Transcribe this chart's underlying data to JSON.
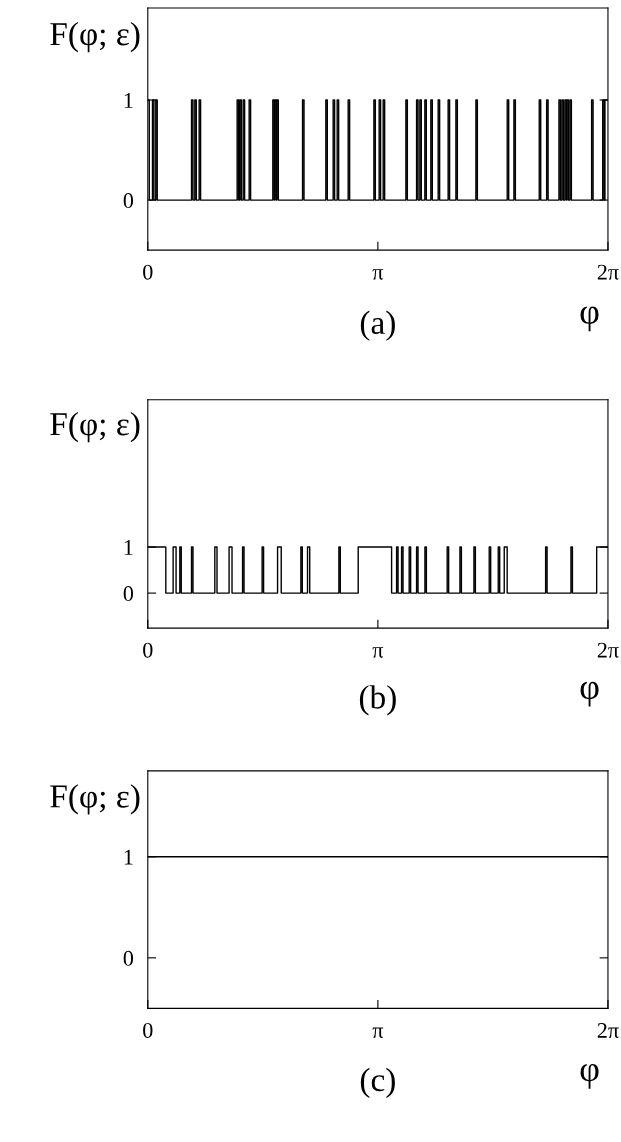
{
  "chart_data": [
    {
      "type": "step",
      "ylabel": "F(φ; ε)",
      "xlabel": "φ",
      "annotations": [
        "(a)"
      ],
      "xlim": [
        0,
        6.2832
      ],
      "ylim": [
        -0.5,
        1.92
      ],
      "xticks": [
        {
          "value": 0,
          "label": "0"
        },
        {
          "value": 3.1416,
          "label": "π"
        },
        {
          "value": 6.2832,
          "label": "2π"
        }
      ],
      "yticks": [
        0,
        1
      ],
      "grid": false,
      "legend": false,
      "series": [
        {
          "color": "#000000",
          "x": [
            0,
            0.02,
            0.064,
            0.084,
            0.109,
            0.129,
            0.597,
            0.617,
            0.642,
            0.662,
            0.701,
            0.721,
            1.22,
            1.24,
            1.257,
            1.277,
            1.302,
            1.322,
            1.384,
            1.404,
            1.707,
            1.727,
            1.735,
            1.755,
            1.762,
            1.782,
            2.113,
            2.133,
            2.431,
            2.451,
            2.531,
            2.551,
            2.586,
            2.606,
            2.736,
            2.756,
            3.087,
            3.107,
            3.159,
            3.179,
            3.214,
            3.234,
            3.524,
            3.544,
            3.67,
            3.69,
            3.715,
            3.735,
            3.783,
            3.803,
            3.865,
            3.885,
            3.965,
            3.985,
            4.101,
            4.121,
            4.207,
            4.227,
            4.48,
            4.5,
            4.908,
            4.928,
            4.999,
            5.019,
            5.345,
            5.365,
            5.446,
            5.466,
            5.614,
            5.634,
            5.655,
            5.675,
            5.696,
            5.716,
            5.723,
            5.743,
            5.764,
            5.784,
            6.06,
            6.08,
            6.211,
            6.231,
            6.242,
            6.283
          ],
          "values": [
            1,
            0,
            1,
            0,
            1,
            0,
            1,
            0,
            1,
            0,
            1,
            0,
            1,
            0,
            1,
            0,
            1,
            0,
            1,
            0,
            1,
            0,
            1,
            0,
            1,
            0,
            1,
            0,
            1,
            0,
            1,
            0,
            1,
            0,
            1,
            0,
            1,
            0,
            1,
            0,
            1,
            0,
            1,
            0,
            1,
            0,
            1,
            0,
            1,
            0,
            1,
            0,
            1,
            0,
            1,
            0,
            1,
            0,
            1,
            0,
            1,
            0,
            1,
            0,
            1,
            0,
            1,
            0,
            1,
            0,
            1,
            0,
            1,
            0,
            1,
            0,
            1,
            0,
            1,
            0,
            1,
            0,
            1,
            1
          ]
        }
      ]
    },
    {
      "type": "step",
      "ylabel": "F(φ; ε)",
      "xlabel": "φ",
      "annotations": [
        "(b)"
      ],
      "xlim": [
        0,
        6.2832
      ],
      "ylim": [
        -0.76,
        4.2
      ],
      "xticks": [
        {
          "value": 0,
          "label": "0"
        },
        {
          "value": 3.1416,
          "label": "π"
        },
        {
          "value": 6.2832,
          "label": "2π"
        }
      ],
      "yticks": [
        0,
        1
      ],
      "grid": false,
      "legend": false,
      "series": [
        {
          "color": "#000000",
          "x": [
            0,
            0.246,
            0.346,
            0.386,
            0.437,
            0.457,
            0.597,
            0.617,
            0.915,
            0.945,
            1.11,
            1.15,
            1.294,
            1.314,
            1.561,
            1.581,
            1.772,
            1.822,
            2.09,
            2.11,
            2.181,
            2.211,
            2.609,
            2.629,
            2.873,
            3.329,
            3.397,
            3.417,
            3.465,
            3.485,
            3.569,
            3.589,
            3.67,
            3.69,
            3.784,
            3.804,
            4.088,
            4.108,
            4.262,
            4.282,
            4.453,
            4.473,
            4.662,
            4.682,
            4.785,
            4.805,
            4.867,
            4.907,
            5.432,
            5.452,
            5.778,
            5.798,
            6.129,
            6.283
          ],
          "values": [
            1,
            0,
            1,
            0,
            1,
            0,
            1,
            0,
            1,
            0,
            1,
            0,
            1,
            0,
            1,
            0,
            1,
            0,
            1,
            0,
            1,
            0,
            1,
            0,
            1,
            0,
            1,
            0,
            1,
            0,
            1,
            0,
            1,
            0,
            1,
            0,
            1,
            0,
            1,
            0,
            1,
            0,
            1,
            0,
            1,
            0,
            1,
            0,
            1,
            0,
            1,
            0,
            1,
            1
          ]
        }
      ]
    },
    {
      "type": "step",
      "ylabel": "F(φ; ε)",
      "xlabel": "φ",
      "annotations": [
        "(c)"
      ],
      "xlim": [
        0,
        6.2832
      ],
      "ylim": [
        -0.5,
        1.85
      ],
      "xticks": [
        {
          "value": 0,
          "label": "0"
        },
        {
          "value": 3.1416,
          "label": "π"
        },
        {
          "value": 6.2832,
          "label": "2π"
        }
      ],
      "yticks": [
        0,
        1
      ],
      "grid": false,
      "legend": false,
      "series": [
        {
          "color": "#000000",
          "x": [
            0,
            6.283
          ],
          "values": [
            1,
            1
          ]
        }
      ]
    }
  ]
}
